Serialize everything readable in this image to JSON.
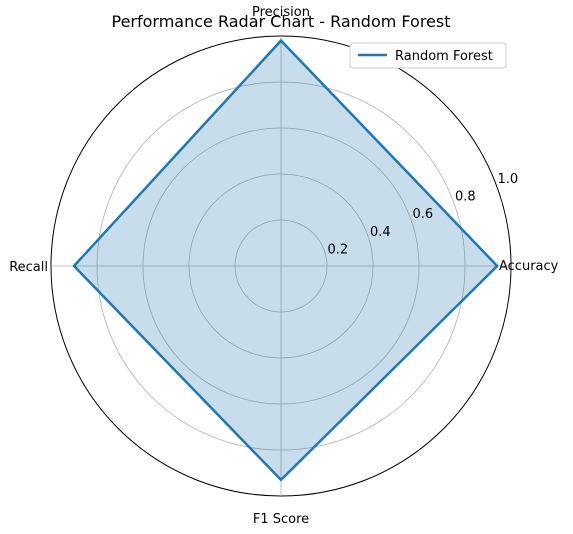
{
  "chart_data": {
    "type": "radar",
    "title": "Performance Radar Chart - Random Forest",
    "axes": [
      "Accuracy",
      "Precision",
      "Recall",
      "F1 Score"
    ],
    "series": [
      {
        "name": "Random Forest",
        "values": [
          0.94,
          0.98,
          0.9,
          0.93
        ]
      }
    ],
    "rlim": [
      0,
      1.0
    ],
    "rticks": [
      0.2,
      0.4,
      0.6,
      0.8,
      1.0
    ],
    "rtick_labels": [
      "0.2",
      "0.4",
      "0.6",
      "0.8",
      "1.0"
    ],
    "grid": true,
    "legend_position": "top-right",
    "colors": {
      "line": "#1f77b4",
      "fill": "#1f77b4",
      "grid": "#b0b0b0",
      "outer": "#000000"
    }
  }
}
